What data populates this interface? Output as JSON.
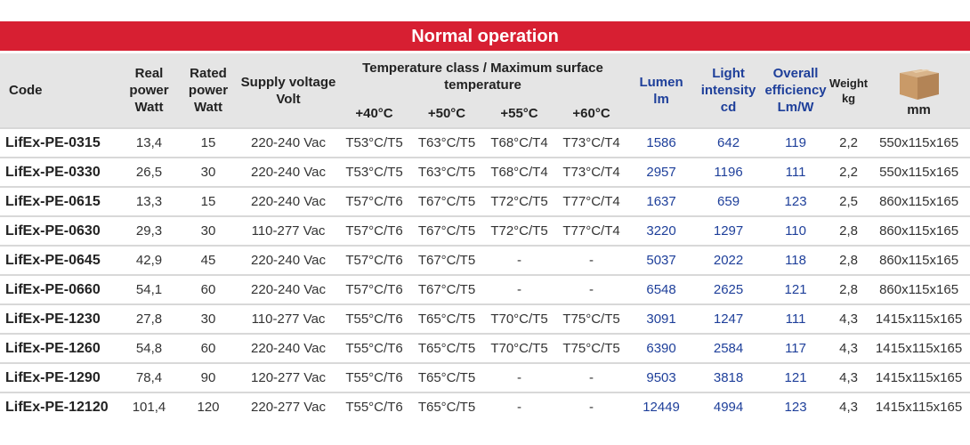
{
  "table": {
    "title": "Normal operation",
    "headers": [
      [
        "Code"
      ],
      [
        "Real",
        "power",
        "Watt"
      ],
      [
        "Rated",
        "power",
        "Watt"
      ],
      [
        "Supply voltage",
        "Volt"
      ],
      [
        "Lumen",
        "lm"
      ],
      [
        "Light",
        "intensity",
        "cd"
      ],
      [
        "Overall",
        "efficiency",
        "Lm/W"
      ],
      [
        "Weight",
        "kg"
      ],
      [
        "mm"
      ]
    ],
    "group_header": "Temperature class / Maximum surface temperature",
    "sub_headers": [
      "+40°C",
      "+50°C",
      "+55°C",
      "+60°C"
    ],
    "rows": [
      [
        "LifEx-PE-0315",
        "13,4",
        "15",
        "220-240 Vac",
        "T53°C/T5",
        "T63°C/T5",
        "T68°C/T4",
        "T73°C/T4",
        "1586",
        "642",
        "119",
        "2,2",
        "550x115x165"
      ],
      [
        "LifEx-PE-0330",
        "26,5",
        "30",
        "220-240 Vac",
        "T53°C/T5",
        "T63°C/T5",
        "T68°C/T4",
        "T73°C/T4",
        "2957",
        "1196",
        "111",
        "2,2",
        "550x115x165"
      ],
      [
        "LifEx-PE-0615",
        "13,3",
        "15",
        "220-240 Vac",
        "T57°C/T6",
        "T67°C/T5",
        "T72°C/T5",
        "T77°C/T4",
        "1637",
        "659",
        "123",
        "2,5",
        "860x115x165"
      ],
      [
        "LifEx-PE-0630",
        "29,3",
        "30",
        "110-277 Vac",
        "T57°C/T6",
        "T67°C/T5",
        "T72°C/T5",
        "T77°C/T4",
        "3220",
        "1297",
        "110",
        "2,8",
        "860x115x165"
      ],
      [
        "LifEx-PE-0645",
        "42,9",
        "45",
        "220-240 Vac",
        "T57°C/T6",
        "T67°C/T5",
        "-",
        "-",
        "5037",
        "2022",
        "118",
        "2,8",
        "860x115x165"
      ],
      [
        "LifEx-PE-0660",
        "54,1",
        "60",
        "220-240 Vac",
        "T57°C/T6",
        "T67°C/T5",
        "-",
        "-",
        "6548",
        "2625",
        "121",
        "2,8",
        "860x115x165"
      ],
      [
        "LifEx-PE-1230",
        "27,8",
        "30",
        "110-277 Vac",
        "T55°C/T6",
        "T65°C/T5",
        "T70°C/T5",
        "T75°C/T5",
        "3091",
        "1247",
        "111",
        "4,3",
        "1415x115x165"
      ],
      [
        "LifEx-PE-1260",
        "54,8",
        "60",
        "220-240 Vac",
        "T55°C/T6",
        "T65°C/T5",
        "T70°C/T5",
        "T75°C/T5",
        "6390",
        "2584",
        "117",
        "4,3",
        "1415x115x165"
      ],
      [
        "LifEx-PE-1290",
        "78,4",
        "90",
        "120-277 Vac",
        "T55°C/T6",
        "T65°C/T5",
        "-",
        "-",
        "9503",
        "3818",
        "121",
        "4,3",
        "1415x115x165"
      ],
      [
        "LifEx-PE-12120",
        "101,4",
        "120",
        "220-277 Vac",
        "T55°C/T6",
        "T65°C/T5",
        "-",
        "-",
        "12449",
        "4994",
        "123",
        "4,3",
        "1415x115x165"
      ]
    ]
  }
}
